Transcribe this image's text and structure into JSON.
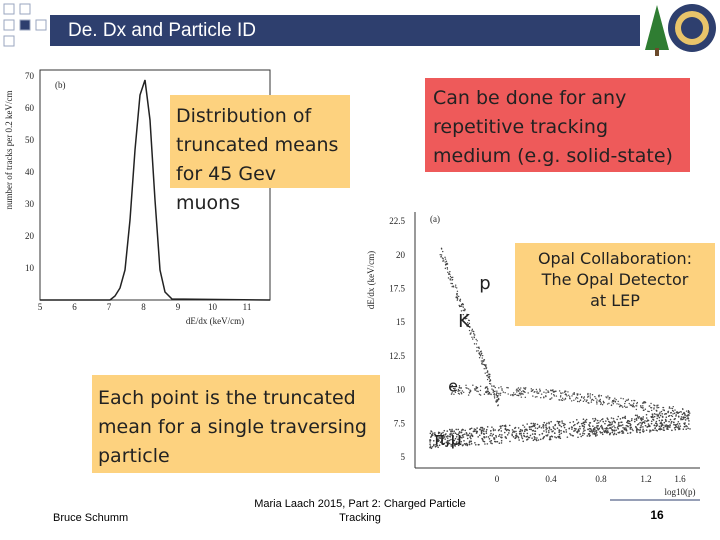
{
  "header": {
    "title": "De. Dx and Particle ID"
  },
  "callouts": {
    "muons": "Distribution of truncated means for 45 Gev muons",
    "medium": "Can be done for any repetitive tracking medium (e.g. solid-state)",
    "opal": "Opal Collaboration: The Opal Detector at LEP",
    "points": "Each point is the truncated mean for a single traversing particle"
  },
  "left_plot": {
    "panel": "(b)",
    "y_label": "number of tracks per 0.2 keV/cm",
    "x_label": "dE/dx (keV/cm)",
    "yticks": [
      "70",
      "60",
      "50",
      "40",
      "30",
      "20",
      "10"
    ],
    "xticks": [
      "5",
      "6",
      "7",
      "8",
      "9",
      "10",
      "11"
    ]
  },
  "right_plot": {
    "panel": "(a)",
    "y_label": "dE/dx (keV/cm)",
    "x_label": "log10(p)",
    "yticks": [
      "22.5",
      "20",
      "17.5",
      "15",
      "12.5",
      "10",
      "7.5",
      "5"
    ],
    "xticks": [
      "0",
      "0.4",
      "0.8",
      "1.2",
      "1.6"
    ],
    "particles": [
      "p",
      "K",
      "e",
      "π,μ"
    ]
  },
  "footer": {
    "author": "Bruce Schumm",
    "event": "Maria Laach 2015, Part 2: Charged Particle",
    "event2": "Tracking",
    "page": "16"
  }
}
